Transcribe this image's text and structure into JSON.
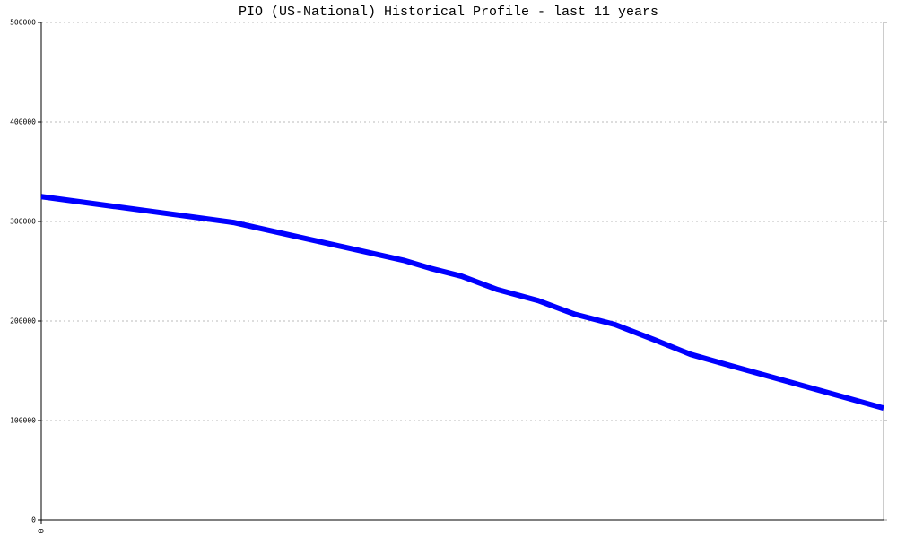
{
  "chart_data": {
    "type": "line",
    "title": "PIO (US-National) Historical Profile - last 11 years",
    "x": [
      0,
      2.51,
      4.73,
      5.08,
      5.49,
      5.96,
      6.49,
      6.96,
      7.49,
      8.01,
      8.48,
      9.01,
      11
    ],
    "values": [
      325000,
      299000,
      261000,
      253000,
      245000,
      231500,
      220500,
      207000,
      196500,
      181000,
      166500,
      155000,
      112500
    ],
    "color": "#0000ff",
    "xlim": [
      0,
      11
    ],
    "xticks": [
      0
    ],
    "ylim": [
      0,
      500000
    ],
    "yticks": [
      0,
      100000,
      200000,
      300000,
      400000,
      500000
    ],
    "grid": true
  }
}
